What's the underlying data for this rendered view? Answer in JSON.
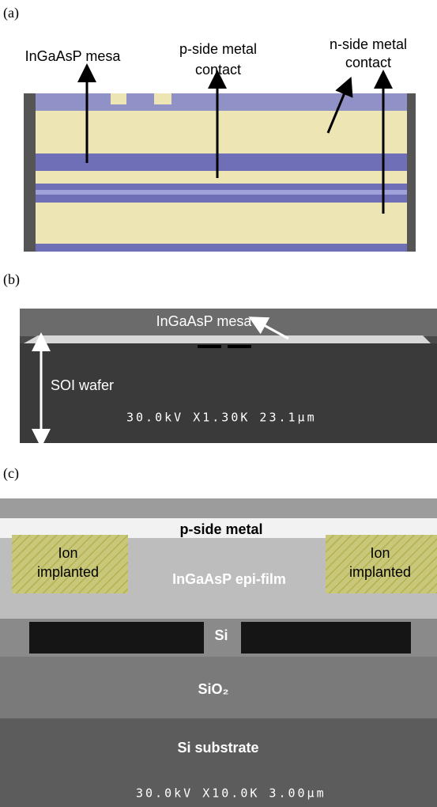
{
  "panels": [
    {
      "label": "(a)",
      "annotations": [
        "InGaAsP mesa",
        "p-side metal",
        "contact",
        "n-side metal",
        "contact"
      ]
    },
    {
      "label": "(b)",
      "annotations": [
        "InGaAsP mesa",
        "SOI wafer"
      ],
      "readout": "30.0kV X1.30K 23.1µm"
    },
    {
      "label": "(c)",
      "annotations": [
        "p-side metal",
        "Ion",
        "implanted",
        "InGaAsP epi-film",
        "Ion",
        "implanted",
        "Si",
        "SiO₂",
        "Si substrate"
      ],
      "readout": "30.0kV X10.0K 3.00µm"
    }
  ]
}
